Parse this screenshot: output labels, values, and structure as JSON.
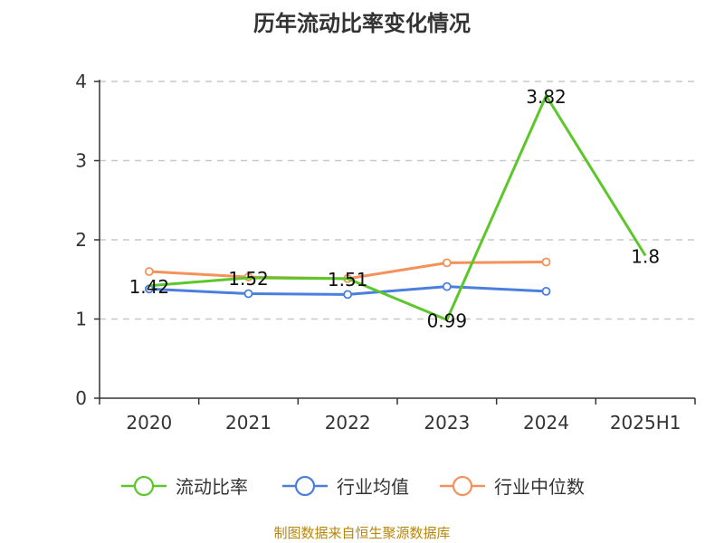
{
  "source_note": "制图数据来自恒生聚源数据库",
  "chart_data": {
    "type": "line",
    "title": "历年流动比率变化情况",
    "categories": [
      "2020",
      "2021",
      "2022",
      "2023",
      "2024",
      "2025H1"
    ],
    "ylim": [
      0,
      4
    ],
    "yticks": [
      "0",
      "1",
      "2",
      "3",
      "4"
    ],
    "grid": true,
    "legend_position": "bottom",
    "series": [
      {
        "name": "流动比率",
        "color": "#5cc72b",
        "values": [
          1.42,
          1.52,
          1.51,
          0.99,
          3.82,
          1.8
        ],
        "labels": [
          "1.42",
          "1.52",
          "1.51",
          "0.99",
          "3.82",
          "1.8"
        ]
      },
      {
        "name": "行业均值",
        "color": "#4a7fde",
        "values": [
          1.38,
          1.32,
          1.31,
          1.41,
          1.35,
          null
        ]
      },
      {
        "name": "行业中位数",
        "color": "#f5915a",
        "values": [
          1.6,
          1.53,
          1.51,
          1.71,
          1.72,
          null
        ]
      }
    ]
  }
}
